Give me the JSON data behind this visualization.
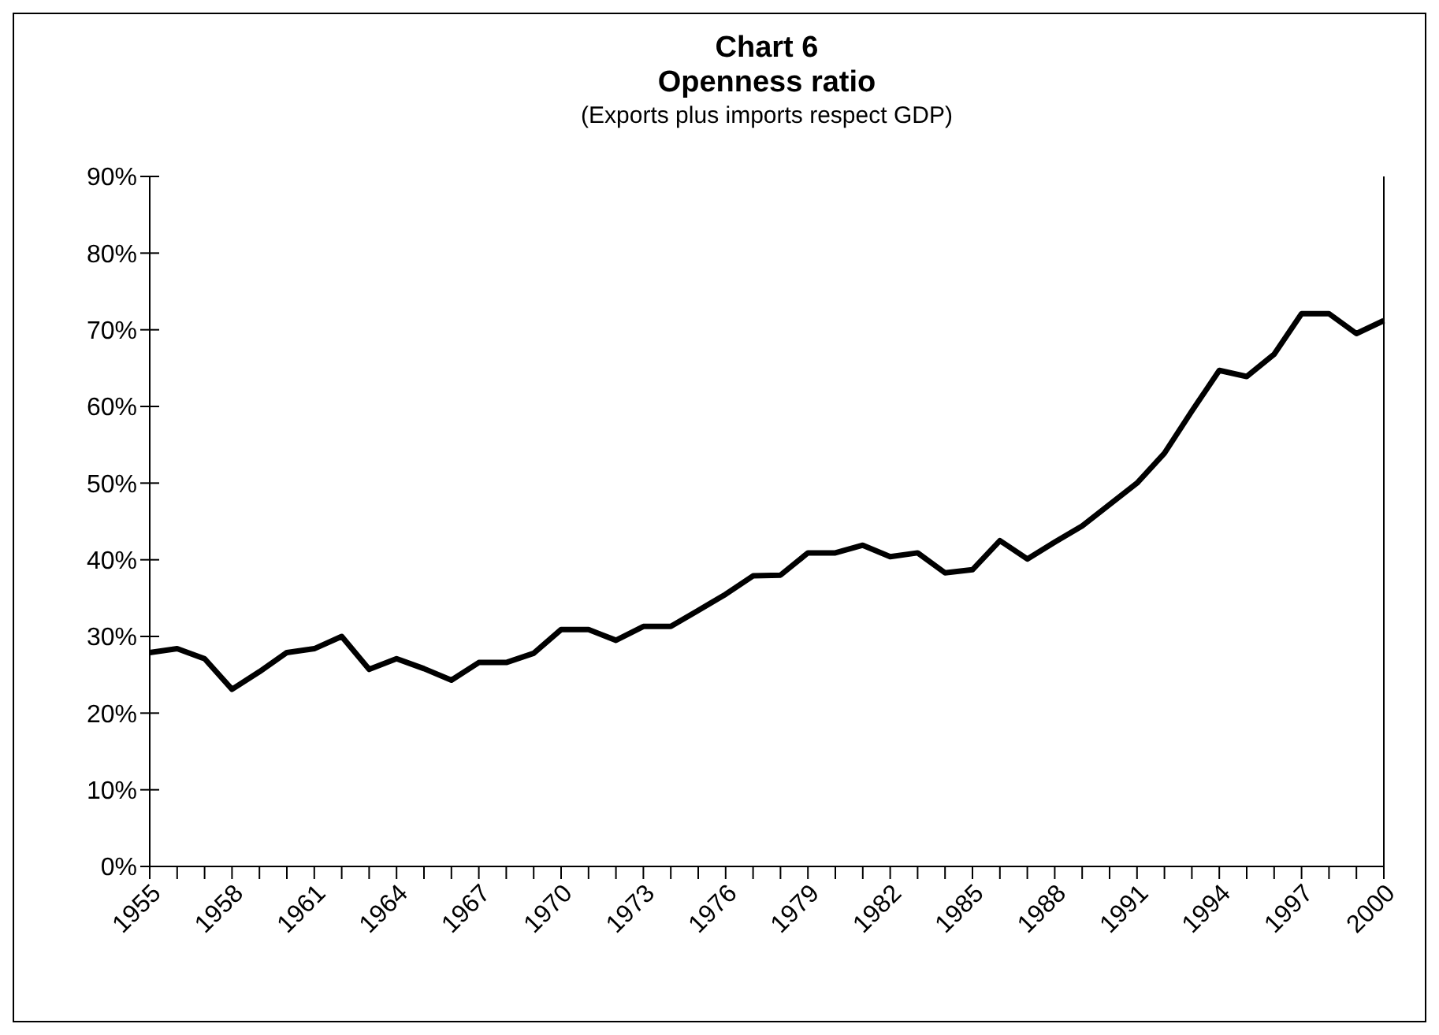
{
  "chart_data": {
    "type": "line",
    "title": "Chart 6\nOpenness ratio",
    "subtitle": "(Exports plus imports respect GDP)",
    "categories": [
      "1955",
      null,
      null,
      "1958",
      null,
      null,
      "1961",
      null,
      null,
      "1964",
      null,
      null,
      "1967",
      null,
      null,
      "1970",
      null,
      null,
      "1973",
      null,
      null,
      "1976",
      null,
      null,
      "1979",
      null,
      null,
      "1982",
      null,
      null,
      "1985",
      null,
      null,
      "1988",
      null,
      null,
      "1991",
      null,
      null,
      "1994",
      null,
      null,
      "1997",
      null,
      null,
      "2000"
    ],
    "series": [
      {
        "color": "#000000",
        "values": [
          27.9,
          28.4,
          27.1,
          23.1,
          25.4,
          27.9,
          28.4,
          30.0,
          25.7,
          27.1,
          25.8,
          24.3,
          26.6,
          26.6,
          27.8,
          30.9,
          30.9,
          29.5,
          31.3,
          31.3,
          33.4,
          35.5,
          37.9,
          38.0,
          40.9,
          40.9,
          41.9,
          40.4,
          40.9,
          38.3,
          38.7,
          42.5,
          40.1,
          42.3,
          44.4,
          47.2,
          50.0,
          53.9,
          59.4,
          64.7,
          63.9,
          66.8,
          72.1,
          72.1,
          69.5,
          71.2
        ]
      }
    ],
    "ylim": [
      0,
      90
    ],
    "yticks": [
      {
        "value": 0,
        "label": "0%"
      },
      {
        "value": 10,
        "label": "10%"
      },
      {
        "value": 20,
        "label": "20%"
      },
      {
        "value": 30,
        "label": "30%"
      },
      {
        "value": 40,
        "label": "40%"
      },
      {
        "value": 50,
        "label": "50%"
      },
      {
        "value": 60,
        "label": "60%"
      },
      {
        "value": 70,
        "label": "70%"
      },
      {
        "value": 80,
        "label": "80%"
      },
      {
        "value": 90,
        "label": "90%"
      }
    ],
    "marker": "none",
    "line_style": "solid"
  }
}
